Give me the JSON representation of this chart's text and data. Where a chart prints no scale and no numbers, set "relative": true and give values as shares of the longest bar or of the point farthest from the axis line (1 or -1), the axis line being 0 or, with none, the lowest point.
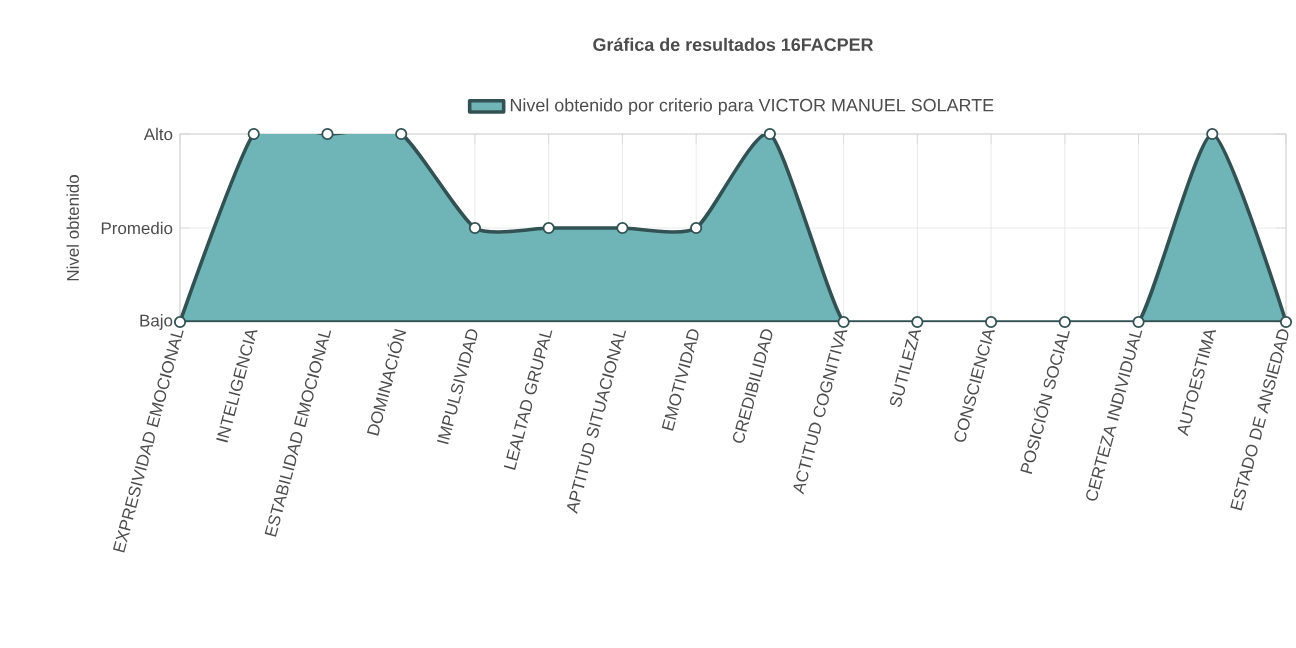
{
  "chart_data": {
    "type": "area",
    "title": "Gráfica de resultados 16FACPER",
    "ylabel": "Nivel obtenido",
    "categories": [
      "EXPRESIVIDAD EMOCIONAL",
      "INTELIGENCIA",
      "ESTABILIDAD EMOCIONAL",
      "DOMINACIÓN",
      "IMPULSIVIDAD",
      "LEALTAD GRUPAL",
      "APTITUD SITUACIONAL",
      "EMOTIVIDAD",
      "CREDIBILIDAD",
      "ACTITUD COGNITIVA",
      "SUTILEZA",
      "CONSCIENCIA",
      "POSICIÓN SOCIAL",
      "CERTEZA INDIVIDUAL",
      "AUTOESTIMA",
      "ESTADO DE ANSIEDAD"
    ],
    "series": [
      {
        "name": "Nivel obtenido por criterio para VICTOR MANUEL  SOLARTE",
        "color": "#6fb5b8",
        "values": [
          0,
          1,
          1,
          1,
          0.5,
          0.5,
          0.5,
          0.5,
          1,
          0,
          0,
          0,
          0,
          0,
          1,
          0
        ]
      }
    ],
    "relative": true,
    "annotations": [
      "Bajo",
      "Promedio",
      "Alto"
    ],
    "grid": true,
    "legend": "top",
    "marker": "circle"
  }
}
